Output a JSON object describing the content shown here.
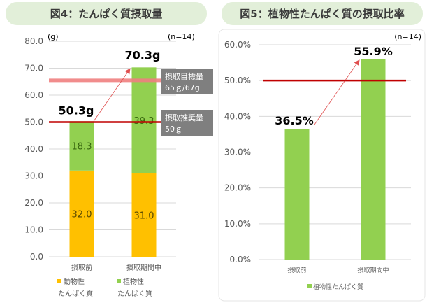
{
  "chart_data": [
    {
      "type": "bar",
      "stacked": true,
      "title": "図4：たんぱく質摂取量",
      "unit_label": "(g)",
      "n_label": "(n=14)",
      "categories": [
        "摂取前",
        "摂取期間中"
      ],
      "series": [
        {
          "name": "動物性たんぱく質",
          "legend_lines": [
            "動物性",
            "たんぱく質"
          ],
          "values": [
            32.0,
            31.0
          ],
          "labels": [
            "32.0",
            "31.0"
          ],
          "color": "#ffc000"
        },
        {
          "name": "植物性たんぱく質",
          "legend_lines": [
            "植物性",
            "たんぱく質"
          ],
          "values": [
            18.3,
            39.3
          ],
          "labels": [
            "18.3",
            "39.3"
          ],
          "color": "#92d050"
        }
      ],
      "totals": [
        "50.3g",
        "70.3g"
      ],
      "ylim": [
        0,
        80
      ],
      "yticks": [
        "0.0",
        "10.0",
        "20.0",
        "30.0",
        "40.0",
        "50.0",
        "60.0",
        "70.0",
        "80.0"
      ],
      "grid": true,
      "legend_position": "bottom",
      "reference_lines": [
        {
          "value": 65.5,
          "color": "#f08080",
          "note_lines": [
            "摂取目標量",
            "65ｇ/67g"
          ]
        },
        {
          "value": 50,
          "color": "#c00000",
          "note_lines": [
            "摂取推奨量",
            "50ｇ"
          ]
        }
      ],
      "arrow_color": "#e05050"
    },
    {
      "type": "bar",
      "title": "図5：植物性たんぱく質の摂取比率",
      "n_label": "(n=14)",
      "categories": [
        "摂取前",
        "摂取期間中"
      ],
      "series": [
        {
          "name": "植物性たんぱく質",
          "values": [
            36.5,
            55.9
          ],
          "labels": [
            "36.5%",
            "55.9%"
          ],
          "color": "#92d050"
        }
      ],
      "ylim": [
        0,
        60
      ],
      "yticks": [
        "0.0%",
        "10.0%",
        "20.0%",
        "30.0%",
        "40.0%",
        "50.0%",
        "60.0%"
      ],
      "grid": true,
      "legend_position": "bottom",
      "reference_lines": [
        {
          "value": 50,
          "color": "#c00000"
        }
      ],
      "arrow_color": "#e05050"
    }
  ],
  "colors": {
    "title_bg": "#e2efd9",
    "note_bg": "#7f7f7f"
  }
}
